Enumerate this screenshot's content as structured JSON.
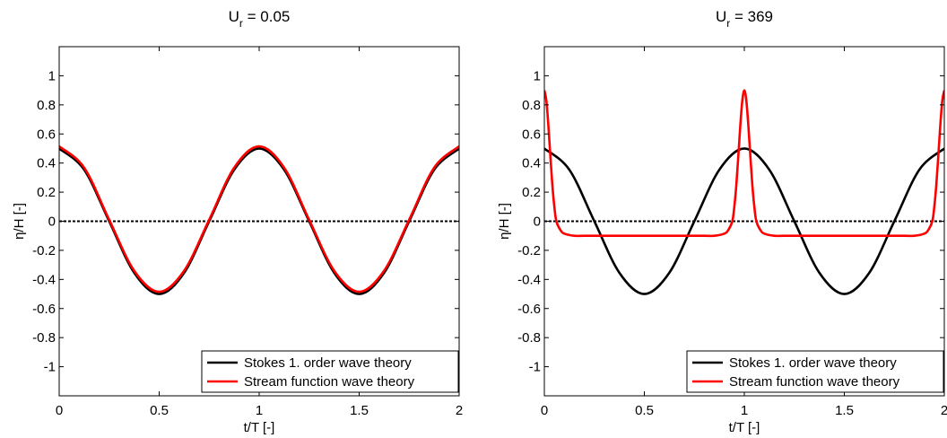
{
  "chart_data": [
    {
      "type": "line",
      "title_main": "U",
      "title_sub": "r",
      "title_rest": " = 0.05",
      "xlabel": "t/T [-]",
      "ylabel": "η/H [-]",
      "xlim": [
        0,
        2
      ],
      "ylim": [
        -1.2,
        1.2
      ],
      "xticks": [
        0,
        0.5,
        1,
        1.5,
        2
      ],
      "xtick_labels": [
        "0",
        "0.5",
        "1",
        "1.5",
        "2"
      ],
      "yticks": [
        -1,
        -0.8,
        -0.6,
        -0.4,
        -0.2,
        0,
        0.2,
        0.4,
        0.6,
        0.8,
        1
      ],
      "ytick_labels": [
        "-1",
        "-0.8",
        "-0.6",
        "-0.4",
        "-0.2",
        "0",
        "0.2",
        "0.4",
        "0.6",
        "0.8",
        "1"
      ],
      "grid": false,
      "legend_position": "bottom-right",
      "series": [
        {
          "name": "Stokes 1. order wave theory",
          "color": "#000000",
          "x": [
            0,
            0.125,
            0.25,
            0.375,
            0.5,
            0.625,
            0.75,
            0.875,
            1,
            1.125,
            1.25,
            1.375,
            1.5,
            1.625,
            1.75,
            1.875,
            2
          ],
          "y": [
            0.5,
            0.354,
            0,
            -0.354,
            -0.5,
            -0.354,
            0,
            0.354,
            0.5,
            0.354,
            0,
            -0.354,
            -0.5,
            -0.354,
            0,
            0.354,
            0.5
          ]
        },
        {
          "name": "Stream function wave theory",
          "color": "#ff0000",
          "x": [
            0,
            0.125,
            0.25,
            0.375,
            0.5,
            0.625,
            0.75,
            0.875,
            1,
            1.125,
            1.25,
            1.375,
            1.5,
            1.625,
            1.75,
            1.875,
            2
          ],
          "y": [
            0.515,
            0.368,
            0.01,
            -0.34,
            -0.485,
            -0.34,
            0.01,
            0.368,
            0.515,
            0.368,
            0.01,
            -0.34,
            -0.485,
            -0.34,
            0.01,
            0.368,
            0.515
          ]
        },
        {
          "name": "",
          "color": "#000000",
          "dashed": true,
          "x": [
            0,
            2
          ],
          "y": [
            0,
            0
          ]
        }
      ]
    },
    {
      "type": "line",
      "title_main": "U",
      "title_sub": "r",
      "title_rest": " = 369",
      "xlabel": "t/T [-]",
      "ylabel": "η/H [-]",
      "xlim": [
        0,
        2
      ],
      "ylim": [
        -1.2,
        1.2
      ],
      "xticks": [
        0,
        0.5,
        1,
        1.5,
        2
      ],
      "xtick_labels": [
        "0",
        "0.5",
        "1",
        "1.5",
        "2"
      ],
      "yticks": [
        -1,
        -0.8,
        -0.6,
        -0.4,
        -0.2,
        0,
        0.2,
        0.4,
        0.6,
        0.8,
        1
      ],
      "ytick_labels": [
        "-1",
        "-0.8",
        "-0.6",
        "-0.4",
        "-0.2",
        "0",
        "0.2",
        "0.4",
        "0.6",
        "0.8",
        "1"
      ],
      "grid": false,
      "legend_position": "bottom-right",
      "series": [
        {
          "name": "Stokes 1. order wave theory",
          "color": "#000000",
          "x": [
            0,
            0.125,
            0.25,
            0.375,
            0.5,
            0.625,
            0.75,
            0.875,
            1,
            1.125,
            1.25,
            1.375,
            1.5,
            1.625,
            1.75,
            1.875,
            2
          ],
          "y": [
            0.5,
            0.354,
            0,
            -0.354,
            -0.5,
            -0.354,
            0,
            0.354,
            0.5,
            0.354,
            0,
            -0.354,
            -0.5,
            -0.354,
            0,
            0.354,
            0.5
          ]
        },
        {
          "name": "Stream function wave theory",
          "color": "#ff0000",
          "x": [
            0,
            0.01,
            0.02,
            0.03,
            0.04,
            0.05,
            0.06,
            0.08,
            0.1,
            0.15,
            0.2,
            0.3,
            0.5,
            0.7,
            0.8,
            0.85,
            0.9,
            0.92,
            0.94,
            0.95,
            0.96,
            0.97,
            0.98,
            0.99,
            1,
            1.01,
            1.02,
            1.03,
            1.04,
            1.05,
            1.06,
            1.08,
            1.1,
            1.15,
            1.2,
            1.3,
            1.5,
            1.7,
            1.8,
            1.85,
            1.9,
            1.92,
            1.94,
            1.95,
            1.96,
            1.97,
            1.98,
            1.99,
            2
          ],
          "y": [
            0.9,
            0.83,
            0.66,
            0.45,
            0.25,
            0.1,
            0.0,
            -0.06,
            -0.085,
            -0.1,
            -0.1,
            -0.1,
            -0.1,
            -0.1,
            -0.1,
            -0.1,
            -0.085,
            -0.06,
            0.0,
            0.1,
            0.25,
            0.45,
            0.66,
            0.83,
            0.9,
            0.83,
            0.66,
            0.45,
            0.25,
            0.1,
            0.0,
            -0.06,
            -0.085,
            -0.1,
            -0.1,
            -0.1,
            -0.1,
            -0.1,
            -0.1,
            -0.1,
            -0.085,
            -0.06,
            0.0,
            0.1,
            0.25,
            0.45,
            0.66,
            0.83,
            0.9
          ]
        },
        {
          "name": "",
          "color": "#000000",
          "dashed": true,
          "x": [
            0,
            2
          ],
          "y": [
            0,
            0
          ]
        }
      ]
    }
  ]
}
